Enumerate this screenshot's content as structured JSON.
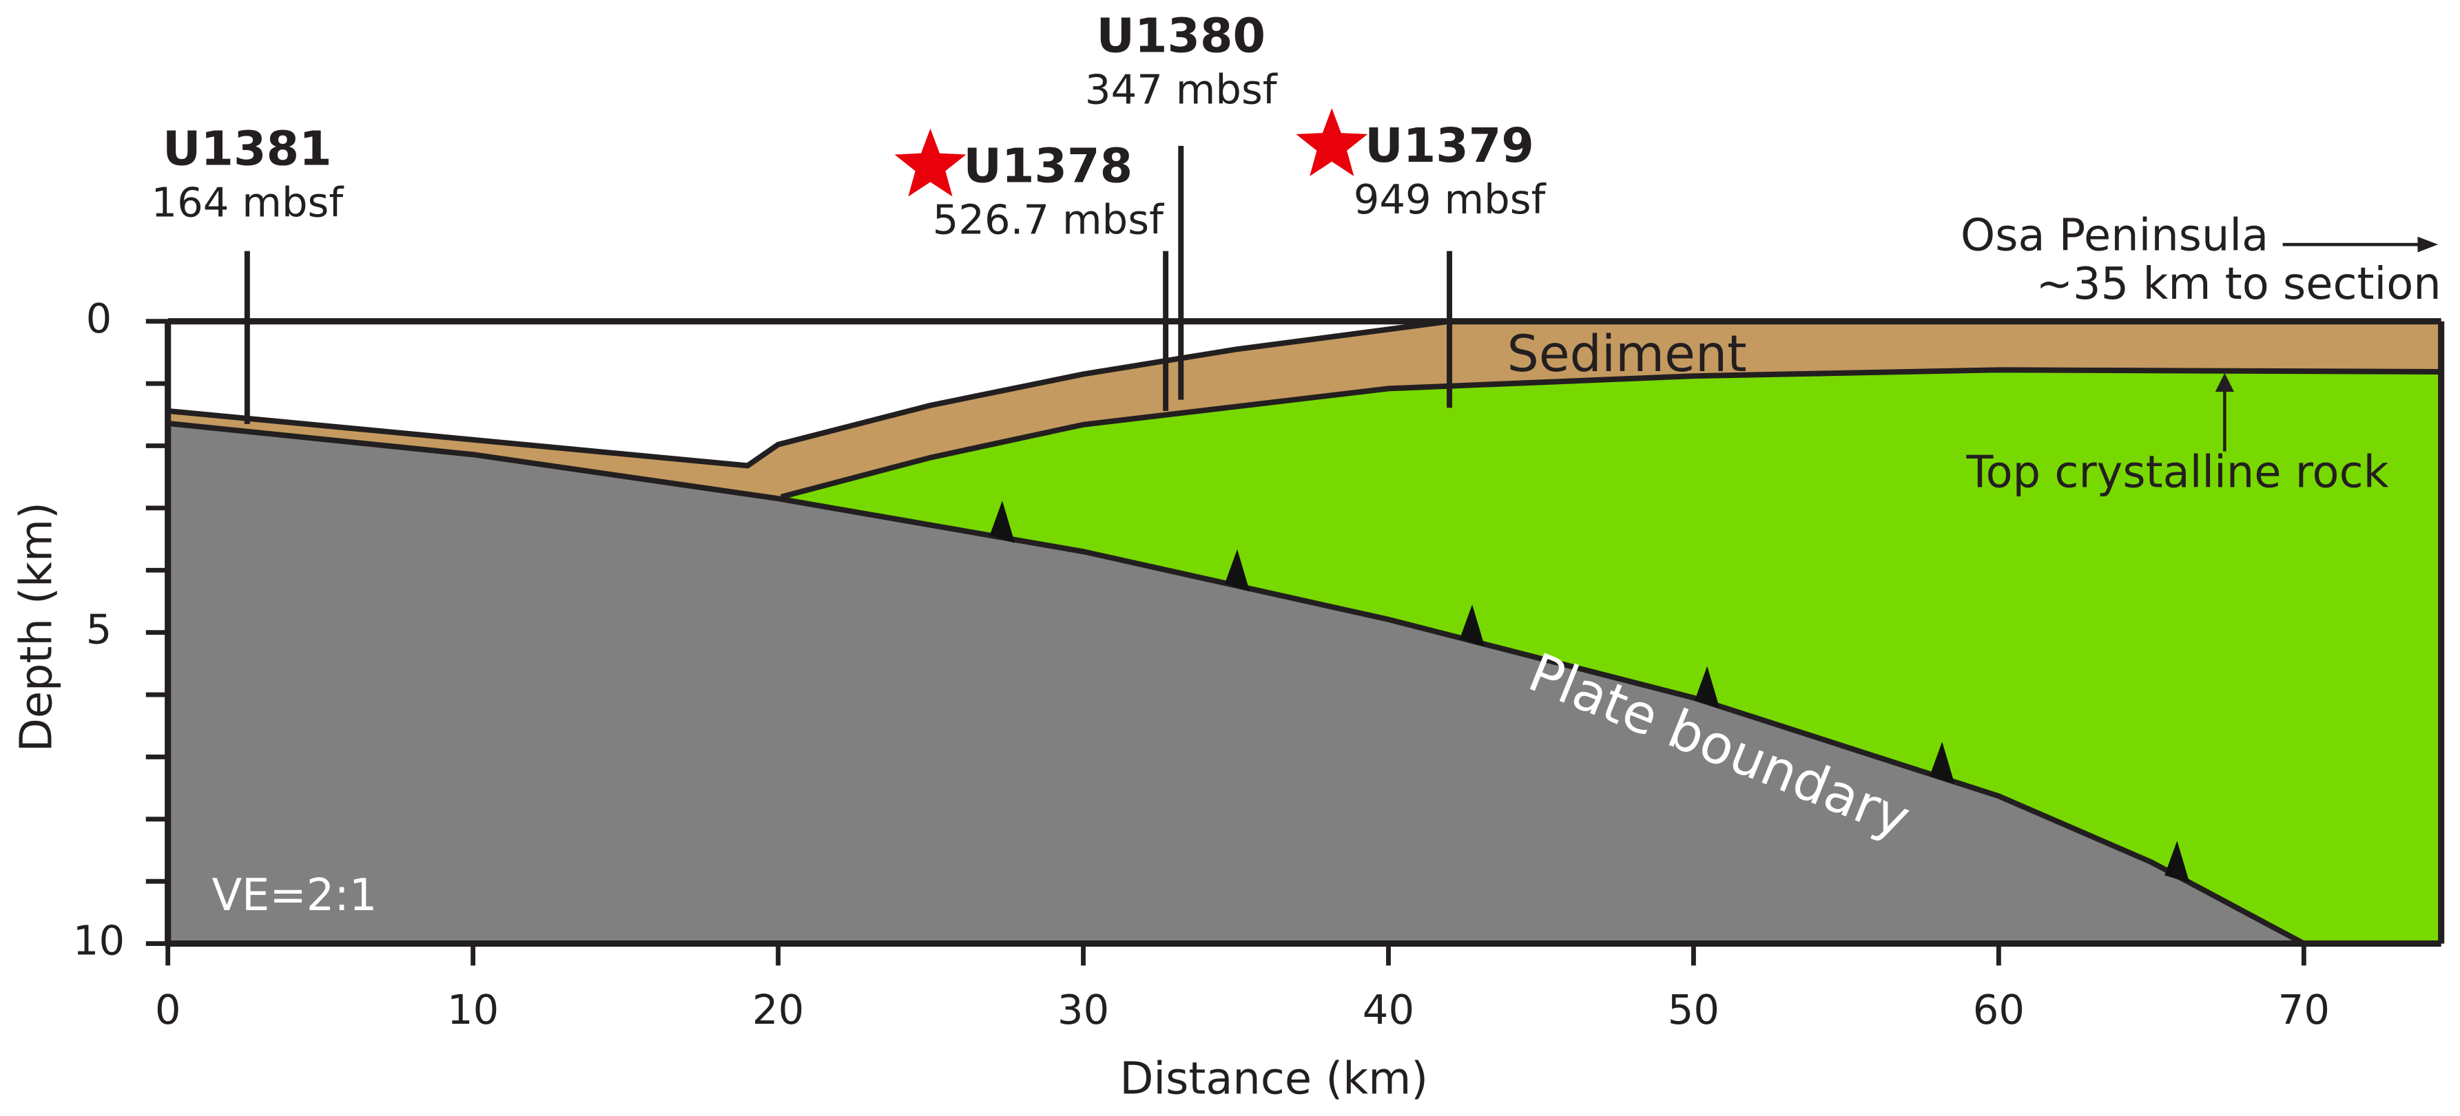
{
  "chart_data": {
    "type": "cross-section",
    "xlabel": "Distance (km)",
    "ylabel": "Depth (km)",
    "xlim": [
      0,
      74.5
    ],
    "ylim": [
      0,
      10
    ],
    "xticks": [
      0,
      10,
      20,
      30,
      40,
      50,
      60,
      70
    ],
    "yticks": [
      0,
      5,
      10
    ],
    "yminorticks": [
      1,
      2,
      3,
      4,
      6,
      7,
      8,
      9
    ],
    "boundaries": [
      {
        "x": [
          0,
          19,
          20,
          25,
          30,
          35,
          42,
          74.5
        ],
        "depth": [
          1.44,
          2.32,
          1.98,
          1.35,
          0.85,
          0.45,
          0,
          0
        ],
        "color": "#c49a60"
      },
      {
        "x": [
          20.1,
          25,
          30,
          40,
          50,
          60,
          74.5
        ],
        "depth": [
          2.82,
          2.19,
          1.66,
          1.08,
          0.88,
          0.78,
          0.81
        ],
        "color": "#78d900"
      },
      {
        "x": [
          0,
          10,
          20,
          30,
          40,
          50,
          60,
          65,
          70
        ],
        "depth": [
          1.64,
          2.14,
          2.85,
          3.7,
          4.79,
          6.05,
          7.63,
          8.69,
          10
        ],
        "color": "#808080"
      }
    ],
    "sites": [
      {
        "name": "U1381",
        "label": "164 mbsf",
        "x": 2.6,
        "top": -1.13,
        "bottom": 1.65,
        "star": false
      },
      {
        "name": "U1378",
        "label": "526.7 mbsf",
        "x": 32.7,
        "top": -1.13,
        "bottom": 1.44,
        "star": true
      },
      {
        "name": "U1380",
        "label": "347 mbsf",
        "x": 33.2,
        "top": -2.82,
        "bottom": 1.26,
        "star": false
      },
      {
        "name": "U1379",
        "label": "949 mbsf",
        "x": 42,
        "top": -1.13,
        "bottom": 1.39,
        "star": true
      }
    ],
    "star_color": "#e8000b",
    "annotations": {
      "sediment": "Sediment",
      "crystalline": "Top crystalline rock",
      "plate": "Plate boundary",
      "ve": "VE=2:1",
      "osa": "Osa Peninsula",
      "osa_distance": "~35 km to section"
    }
  }
}
